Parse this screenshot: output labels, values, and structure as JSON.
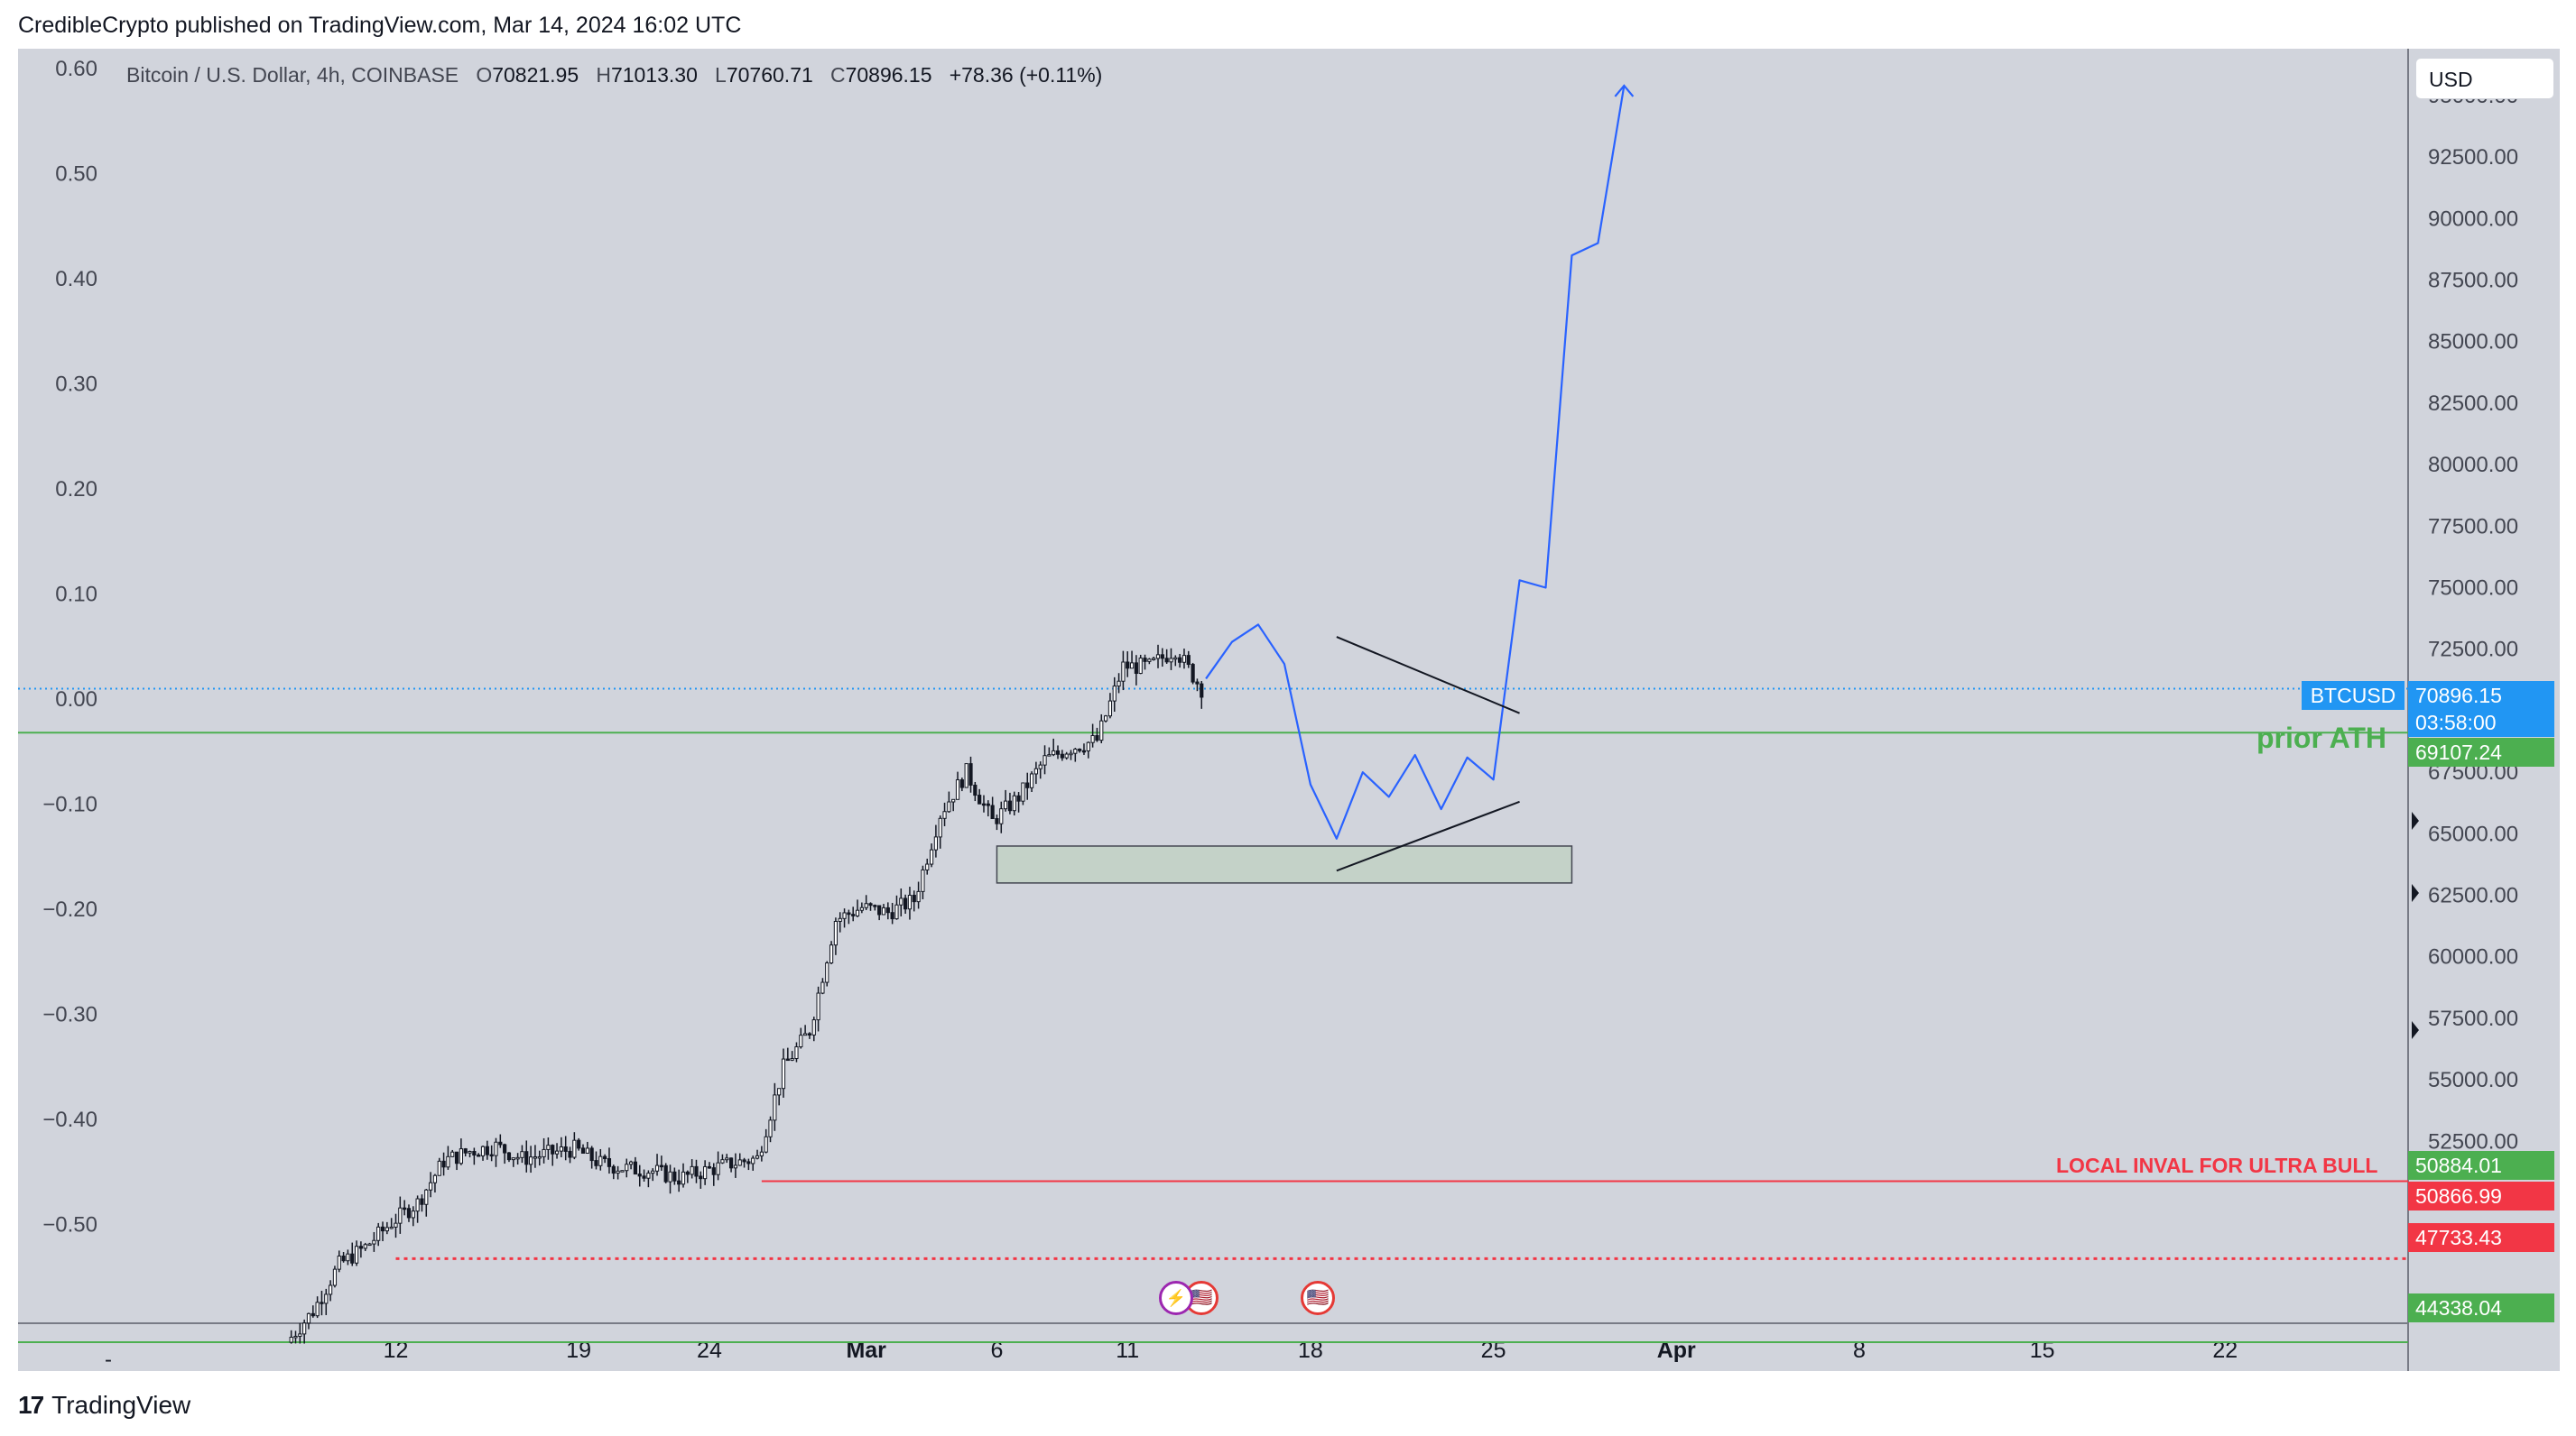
{
  "header": {
    "published": "CredibleCrypto published on TradingView.com, Mar 14, 2024 16:02 UTC"
  },
  "legend": {
    "symbol": "Bitcoin / U.S. Dollar, 4h, COINBASE",
    "o_label": "O",
    "o": "70821.95",
    "h_label": "H",
    "h": "71013.30",
    "l_label": "L",
    "l": "70760.71",
    "c_label": "C",
    "c": "70896.15",
    "change": "+78.36 (+0.11%)"
  },
  "currency": "USD",
  "price_tags": {
    "symbol": "BTCUSD",
    "last": "70896.15",
    "countdown": "03:58:00",
    "prior_ath": "69107.24",
    "level_50884": "50884.01",
    "level_50866": "50866.99",
    "level_47733": "47733.43",
    "level_44338": "44338.04"
  },
  "annotations": {
    "prior_ath": "prior ATH",
    "local_inval": "LOCAL INVAL FOR ULTRA BULL"
  },
  "colors": {
    "background": "#d1d4dc",
    "green": "#4caf50",
    "red": "#f23645",
    "blue_path": "#2962ff",
    "last_price": "#2196f3",
    "zone_fill": "#c4d2c8"
  },
  "footer": {
    "brand": "TradingView"
  },
  "chart_data": {
    "type": "candlestick",
    "timeframe": "4h",
    "right_axis": {
      "ticks": [
        "95000.00",
        "92500.00",
        "90000.00",
        "87500.00",
        "85000.00",
        "82500.00",
        "80000.00",
        "77500.00",
        "75000.00",
        "72500.00",
        "67500.00",
        "65000.00",
        "62500.00",
        "60000.00",
        "57500.00",
        "55000.00",
        "52500.00"
      ],
      "range": [
        43900,
        96900
      ]
    },
    "left_axis": {
      "ticks": [
        "0.60",
        "0.50",
        "0.40",
        "0.30",
        "0.20",
        "0.10",
        "0.00",
        "−0.10",
        "−0.20",
        "−0.30",
        "−0.40",
        "−0.50"
      ]
    },
    "x_axis": {
      "ticks": [
        "12",
        "19",
        "24",
        "Mar",
        "6",
        "11",
        "18",
        "25",
        "Apr",
        "8",
        "15",
        "22"
      ],
      "left_marker": "-"
    },
    "price_path": [
      [
        "2024-02-08",
        44338
      ],
      [
        "2024-02-09",
        45600
      ],
      [
        "2024-02-10",
        47500
      ],
      [
        "2024-02-11",
        48200
      ],
      [
        "2024-02-12",
        49200
      ],
      [
        "2024-02-13",
        50000
      ],
      [
        "2024-02-14",
        51700
      ],
      [
        "2024-02-15",
        52100
      ],
      [
        "2024-02-16",
        52300
      ],
      [
        "2024-02-17",
        51800
      ],
      [
        "2024-02-18",
        52000
      ],
      [
        "2024-02-19",
        52200
      ],
      [
        "2024-02-20",
        51600
      ],
      [
        "2024-02-21",
        51400
      ],
      [
        "2024-02-22",
        51300
      ],
      [
        "2024-02-23",
        51000
      ],
      [
        "2024-02-24",
        51300
      ],
      [
        "2024-02-25",
        51600
      ],
      [
        "2024-02-26",
        51800
      ],
      [
        "2024-02-27",
        55500
      ],
      [
        "2024-02-28",
        57000
      ],
      [
        "2024-02-29",
        61500
      ],
      [
        "2024-03-01",
        62000
      ],
      [
        "2024-03-02",
        61800
      ],
      [
        "2024-03-03",
        62300
      ],
      [
        "2024-03-04",
        65800
      ],
      [
        "2024-03-05",
        67500
      ],
      [
        "2024-03-06",
        65500
      ],
      [
        "2024-03-07",
        66500
      ],
      [
        "2024-03-08",
        68000
      ],
      [
        "2024-03-09",
        68500
      ],
      [
        "2024-03-10",
        68800
      ],
      [
        "2024-03-11",
        71800
      ],
      [
        "2024-03-12",
        71800
      ],
      [
        "2024-03-13",
        72500
      ],
      [
        "2024-03-14",
        70896
      ]
    ],
    "projection_path": [
      [
        "2024-03-14",
        71300
      ],
      [
        "2024-03-15",
        72800
      ],
      [
        "2024-03-16",
        73500
      ],
      [
        "2024-03-17",
        71900
      ],
      [
        "2024-03-18",
        67000
      ],
      [
        "2024-03-19",
        64800
      ],
      [
        "2024-03-20",
        67500
      ],
      [
        "2024-03-21",
        66500
      ],
      [
        "2024-03-22",
        68200
      ],
      [
        "2024-03-23",
        66000
      ],
      [
        "2024-03-24",
        68100
      ],
      [
        "2024-03-25",
        67200
      ],
      [
        "2024-03-26",
        75300
      ],
      [
        "2024-03-27",
        75000
      ],
      [
        "2024-03-28",
        88500
      ],
      [
        "2024-03-29",
        89000
      ],
      [
        "2024-03-30",
        95400
      ]
    ],
    "horizontal_lines": [
      {
        "price": 70896.15,
        "style": "dotted",
        "color": "#2196f3"
      },
      {
        "price": 69107.24,
        "style": "solid",
        "color": "#4caf50",
        "label": "prior ATH"
      },
      {
        "price": 50884.01,
        "style": "solid",
        "color": "#f23645",
        "label": "LOCAL INVAL FOR ULTRA BULL"
      },
      {
        "price": 47733.43,
        "style": "dotted",
        "color": "#f23645"
      },
      {
        "price": 44338.04,
        "style": "solid",
        "color": "#4caf50"
      }
    ],
    "zone": {
      "from": "2024-03-06",
      "to": "2024-03-28",
      "low": 63000,
      "high": 64500
    },
    "triangle": {
      "upper": [
        [
          "2024-03-19",
          73000
        ],
        [
          "2024-03-26",
          69900
        ]
      ],
      "lower": [
        [
          "2024-03-19",
          63500
        ],
        [
          "2024-03-26",
          66300
        ]
      ]
    }
  }
}
